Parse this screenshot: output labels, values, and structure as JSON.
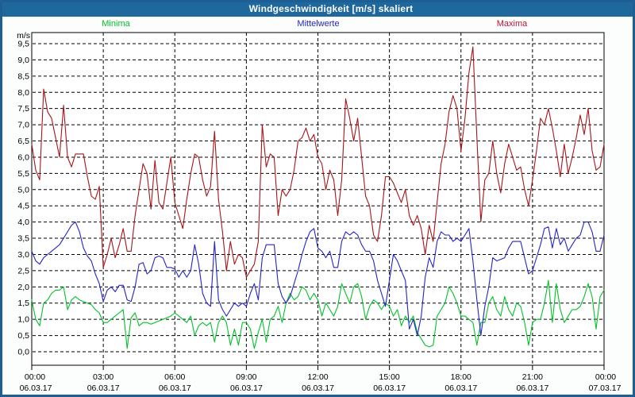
{
  "window": {
    "title": "Windgeschwindigkeit [m/s] skaliert"
  },
  "colors": {
    "titlebar_bg": "#1e689e",
    "titlebar_text": "#ffffff",
    "frame_border": "#1d5e95",
    "page_bg": "#fcfdfd",
    "plot_bg": "#ffffff",
    "grid": "#000000",
    "axis_text": "#000000",
    "minima": "#00c228",
    "mittelwerte": "#2323c8",
    "maxima_line": "#a81417",
    "maxima_label": "#c01334"
  },
  "chart_data": {
    "type": "line",
    "title": "Windgeschwindigkeit [m/s] skaliert",
    "y_unit": "m/s",
    "ylim": [
      0.0,
      9.5
    ],
    "ytick_step": 0.5,
    "ytick_labels": [
      "9,5",
      "9,0",
      "8,5",
      "8,0",
      "7,5",
      "7,0",
      "6,5",
      "6,0",
      "5,5",
      "5,0",
      "4,5",
      "4,0",
      "3,5",
      "3,0",
      "2,5",
      "2,0",
      "1,5",
      "1,0",
      "0,5",
      "0,0"
    ],
    "grid": "dashed",
    "legend_position": "top",
    "sample_interval_minutes": 10,
    "x_axis": {
      "hours_total": 24,
      "tick_interval_hours": 3,
      "ticks": [
        {
          "time": "00:00",
          "date": "06.03.17"
        },
        {
          "time": "03:00",
          "date": "06.03.17"
        },
        {
          "time": "06:00",
          "date": "06.03.17"
        },
        {
          "time": "09:00",
          "date": "06.03.17"
        },
        {
          "time": "12:00",
          "date": "06.03.17"
        },
        {
          "time": "15:00",
          "date": "06.03.17"
        },
        {
          "time": "18:00",
          "date": "06.03.17"
        },
        {
          "time": "21:00",
          "date": "06.03.17"
        },
        {
          "time": "00:00",
          "date": "07.03.17"
        }
      ]
    },
    "series": [
      {
        "name": "Minima",
        "color": "#00c228",
        "values": [
          1.6,
          1.0,
          0.8,
          1.5,
          1.6,
          1.8,
          1.9,
          1.9,
          2.0,
          1.3,
          1.6,
          1.7,
          1.6,
          1.55,
          1.5,
          1.45,
          1.3,
          1.2,
          0.9,
          0.9,
          1.0,
          1.1,
          1.2,
          1.3,
          0.1,
          1.05,
          1.2,
          0.8,
          0.9,
          0.9,
          0.85,
          0.9,
          0.95,
          1.0,
          1.05,
          1.1,
          1.2,
          1.1,
          1.0,
          0.9,
          1.1,
          0.5,
          0.8,
          0.9,
          0.8,
          0.9,
          0.3,
          0.9,
          1.1,
          0.9,
          0.2,
          0.7,
          0.2,
          0.9,
          0.9,
          0.7,
          0.1,
          0.6,
          1.0,
          0.3,
          1.0,
          1.1,
          1.4,
          0.9,
          1.5,
          1.8,
          1.6,
          1.7,
          2.0,
          1.9,
          1.6,
          1.8,
          1.6,
          1.1,
          1.5,
          1.3,
          1.1,
          1.4,
          2.1,
          1.8,
          1.5,
          2.0,
          2.1,
          1.7,
          1.0,
          1.4,
          1.6,
          1.5,
          1.3,
          1.5,
          1.4,
          1.1,
          1.3,
          0.8,
          1.1,
          0.9,
          1.1,
          0.6,
          0.4,
          0.2,
          0.15,
          0.2,
          1.1,
          1.3,
          1.5,
          2.0,
          1.8,
          1.5,
          1.1,
          1.1,
          1.0,
          0.9,
          0.2,
          0.9,
          0.9,
          1.5,
          1.7,
          1.3,
          1.1,
          1.7,
          1.3,
          1.1,
          1.5,
          1.4,
          0.9,
          0.2,
          0.9,
          1.0,
          1.0,
          1.5,
          2.2,
          0.9,
          2.1,
          1.3,
          0.9,
          1.1,
          1.3,
          1.3,
          1.4,
          1.7,
          2.1,
          1.7,
          0.7,
          1.7,
          1.9
        ]
      },
      {
        "name": "Mittelwerte",
        "color": "#2323c8",
        "values": [
          3.1,
          2.8,
          2.7,
          2.9,
          3.0,
          3.1,
          3.2,
          3.3,
          3.5,
          3.7,
          3.9,
          4.0,
          3.7,
          3.2,
          2.95,
          2.8,
          2.4,
          2.1,
          1.55,
          1.9,
          2.0,
          1.85,
          2.05,
          2.05,
          1.6,
          1.55,
          2.0,
          2.7,
          2.75,
          2.4,
          2.5,
          2.9,
          2.95,
          2.9,
          2.6,
          2.6,
          2.55,
          2.3,
          2.5,
          2.3,
          2.5,
          3.3,
          2.7,
          1.8,
          1.5,
          1.4,
          3.4,
          1.6,
          1.3,
          1.1,
          1.3,
          1.5,
          1.4,
          1.5,
          1.4,
          1.8,
          2.1,
          1.6,
          2.9,
          3.3,
          3.3,
          3.3,
          2.1,
          1.7,
          1.5,
          1.7,
          2.1,
          2.5,
          3.0,
          3.4,
          3.7,
          3.8,
          3.2,
          3.1,
          2.9,
          3.1,
          2.6,
          2.6,
          3.4,
          3.7,
          3.6,
          3.7,
          3.6,
          3.3,
          3.1,
          3.1,
          2.8,
          2.2,
          1.8,
          1.4,
          2.2,
          3.0,
          2.8,
          2.5,
          2.2,
          0.7,
          1.0,
          0.5,
          1.1,
          2.3,
          2.9,
          2.6,
          3.4,
          3.7,
          3.6,
          3.6,
          3.4,
          3.5,
          3.4,
          3.6,
          3.8,
          2.8,
          1.6,
          0.5,
          1.4,
          2.0,
          2.9,
          2.8,
          2.85,
          2.9,
          3.2,
          3.4,
          3.4,
          3.4,
          2.9,
          2.4,
          2.5,
          2.9,
          3.3,
          3.8,
          3.85,
          3.2,
          3.8,
          3.3,
          3.5,
          3.1,
          3.3,
          3.5,
          3.6,
          4.0,
          4.0,
          3.7,
          3.1,
          3.1,
          3.6
        ]
      },
      {
        "name": "Maxima",
        "color": "#a81417",
        "values": [
          6.4,
          5.6,
          5.3,
          8.1,
          7.4,
          7.2,
          6.6,
          6.0,
          7.6,
          6.0,
          5.7,
          6.1,
          6.1,
          6.1,
          5.4,
          4.8,
          4.7,
          5.1,
          2.6,
          3.0,
          3.5,
          2.9,
          3.3,
          3.8,
          3.1,
          3.1,
          4.2,
          5.0,
          5.8,
          5.5,
          4.4,
          5.9,
          4.6,
          4.4,
          5.2,
          6.0,
          4.6,
          4.2,
          3.8,
          4.7,
          5.5,
          6.1,
          6.0,
          5.3,
          4.8,
          5.1,
          6.8,
          4.7,
          3.7,
          2.5,
          3.4,
          2.7,
          3.0,
          2.9,
          2.3,
          2.5,
          2.7,
          3.4,
          7.0,
          5.7,
          6.1,
          6.0,
          4.2,
          5.0,
          4.8,
          5.0,
          5.6,
          6.5,
          6.6,
          6.9,
          6.5,
          6.7,
          6.0,
          5.8,
          5.0,
          5.6,
          5.3,
          4.2,
          5.3,
          7.8,
          7.2,
          6.5,
          7.2,
          6.0,
          4.8,
          4.5,
          3.6,
          3.4,
          4.2,
          5.4,
          5.4,
          5.2,
          4.9,
          4.6,
          5.0,
          4.2,
          3.9,
          4.2,
          3.8,
          3.0,
          3.9,
          3.4,
          4.6,
          5.8,
          6.4,
          7.4,
          7.9,
          7.5,
          6.2,
          7.2,
          8.6,
          9.4,
          6.6,
          4.0,
          5.3,
          5.5,
          6.5,
          5.5,
          4.9,
          5.8,
          6.4,
          6.0,
          5.6,
          5.7,
          5.0,
          4.5,
          5.3,
          6.2,
          7.2,
          7.0,
          7.5,
          6.9,
          6.2,
          5.4,
          6.4,
          5.5,
          6.0,
          6.6,
          7.3,
          6.7,
          7.5,
          6.2,
          5.6,
          5.7,
          6.4
        ]
      }
    ]
  }
}
